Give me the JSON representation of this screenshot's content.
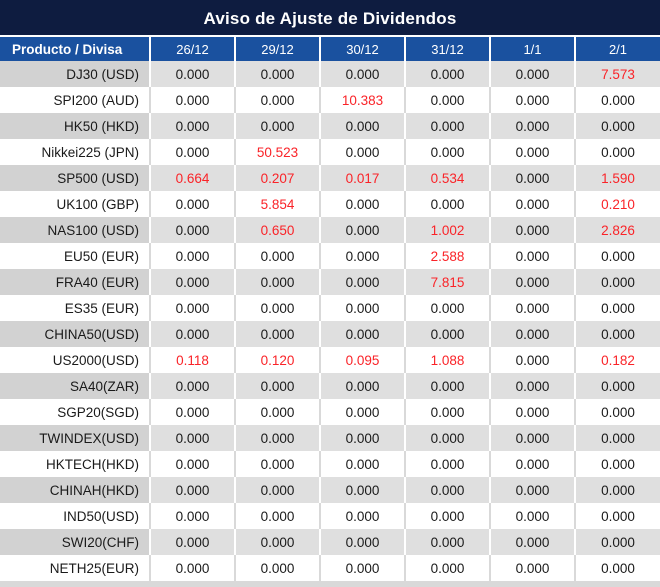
{
  "title": "Aviso de Ajuste de Dividendos",
  "colors": {
    "title_bg": "#0e1c40",
    "header_bg": "#1a519f",
    "row_shade_label": "#d2d2d2",
    "row_shade_value": "#dfdfdf",
    "separator_on_plain": "#d9d9d9",
    "highlight_value": "#fa2328",
    "text": "#1a1a1a"
  },
  "table": {
    "product_column_header": "Producto / Divisa",
    "date_columns": [
      "26/12",
      "29/12",
      "30/12",
      "31/12",
      "1/1",
      "2/1"
    ],
    "rows": [
      {
        "label": "DJ30 (USD)",
        "values": [
          "0.000",
          "0.000",
          "0.000",
          "0.000",
          "0.000",
          "7.573"
        ]
      },
      {
        "label": "SPI200 (AUD)",
        "values": [
          "0.000",
          "0.000",
          "10.383",
          "0.000",
          "0.000",
          "0.000"
        ]
      },
      {
        "label": "HK50 (HKD)",
        "values": [
          "0.000",
          "0.000",
          "0.000",
          "0.000",
          "0.000",
          "0.000"
        ]
      },
      {
        "label": "Nikkei225 (JPN)",
        "values": [
          "0.000",
          "50.523",
          "0.000",
          "0.000",
          "0.000",
          "0.000"
        ]
      },
      {
        "label": "SP500 (USD)",
        "values": [
          "0.664",
          "0.207",
          "0.017",
          "0.534",
          "0.000",
          "1.590"
        ]
      },
      {
        "label": "UK100 (GBP)",
        "values": [
          "0.000",
          "5.854",
          "0.000",
          "0.000",
          "0.000",
          "0.210"
        ]
      },
      {
        "label": "NAS100 (USD)",
        "values": [
          "0.000",
          "0.650",
          "0.000",
          "1.002",
          "0.000",
          "2.826"
        ]
      },
      {
        "label": "EU50 (EUR)",
        "values": [
          "0.000",
          "0.000",
          "0.000",
          "2.588",
          "0.000",
          "0.000"
        ]
      },
      {
        "label": "FRA40 (EUR)",
        "values": [
          "0.000",
          "0.000",
          "0.000",
          "7.815",
          "0.000",
          "0.000"
        ]
      },
      {
        "label": "ES35 (EUR)",
        "values": [
          "0.000",
          "0.000",
          "0.000",
          "0.000",
          "0.000",
          "0.000"
        ]
      },
      {
        "label": "CHINA50(USD)",
        "values": [
          "0.000",
          "0.000",
          "0.000",
          "0.000",
          "0.000",
          "0.000"
        ]
      },
      {
        "label": "US2000(USD)",
        "values": [
          "0.118",
          "0.120",
          "0.095",
          "1.088",
          "0.000",
          "0.182"
        ]
      },
      {
        "label": "SA40(ZAR)",
        "values": [
          "0.000",
          "0.000",
          "0.000",
          "0.000",
          "0.000",
          "0.000"
        ]
      },
      {
        "label": "SGP20(SGD)",
        "values": [
          "0.000",
          "0.000",
          "0.000",
          "0.000",
          "0.000",
          "0.000"
        ]
      },
      {
        "label": "TWINDEX(USD)",
        "values": [
          "0.000",
          "0.000",
          "0.000",
          "0.000",
          "0.000",
          "0.000"
        ]
      },
      {
        "label": "HKTECH(HKD)",
        "values": [
          "0.000",
          "0.000",
          "0.000",
          "0.000",
          "0.000",
          "0.000"
        ]
      },
      {
        "label": "CHINAH(HKD)",
        "values": [
          "0.000",
          "0.000",
          "0.000",
          "0.000",
          "0.000",
          "0.000"
        ]
      },
      {
        "label": "IND50(USD)",
        "values": [
          "0.000",
          "0.000",
          "0.000",
          "0.000",
          "0.000",
          "0.000"
        ]
      },
      {
        "label": "SWI20(CHF)",
        "values": [
          "0.000",
          "0.000",
          "0.000",
          "0.000",
          "0.000",
          "0.000"
        ]
      },
      {
        "label": "NETH25(EUR)",
        "values": [
          "0.000",
          "0.000",
          "0.000",
          "0.000",
          "0.000",
          "0.000"
        ]
      }
    ]
  }
}
